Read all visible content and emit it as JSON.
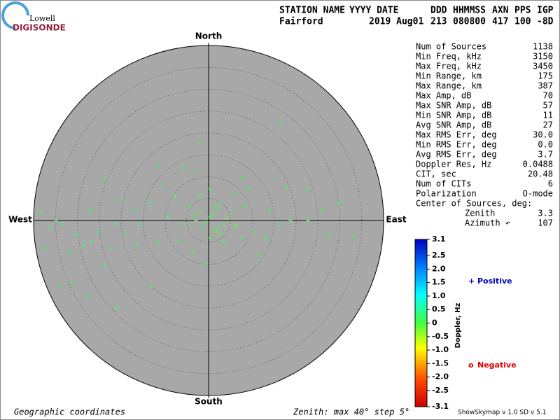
{
  "header": {
    "logo_small": "Lowell",
    "logo_big": "DIGISONDE",
    "columns": [
      "STATION NAME",
      "YYYY DATE",
      "DDD",
      "HHMMSS",
      "AXN",
      "PPS",
      "IGP"
    ],
    "values": [
      "Fairford",
      "2019 Aug01",
      "213",
      "080800",
      "417",
      "100",
      "-8D"
    ]
  },
  "stats": [
    {
      "label": "Num of Sources",
      "value": "1138"
    },
    {
      "label": "Min Freq, kHz",
      "value": "3150"
    },
    {
      "label": "Max Freq, kHz",
      "value": "3450"
    },
    {
      "label": "Min Range, km",
      "value": "175"
    },
    {
      "label": "Max Range, km",
      "value": "387"
    },
    {
      "label": "Max Amp, dB",
      "value": "70"
    },
    {
      "label": "Max SNR Amp, dB",
      "value": "57"
    },
    {
      "label": "Min SNR Amp, dB",
      "value": "11"
    },
    {
      "label": "Avg SNR Amp, dB",
      "value": "27"
    },
    {
      "label": "Max RMS Err, deg",
      "value": "30.0"
    },
    {
      "label": "Min RMS Err, deg",
      "value": "0.0"
    },
    {
      "label": "Avg RMS Err, deg",
      "value": "3.7"
    },
    {
      "label": "Doppler Res, Hz",
      "value": "0.0488"
    },
    {
      "label": "CIT, sec",
      "value": "20.48"
    },
    {
      "label": "Num of CITs",
      "value": "6"
    },
    {
      "label": "Polarization",
      "value": "O-mode"
    }
  ],
  "center": {
    "title": "Center of Sources, deg:",
    "rows": [
      {
        "label": "Zenith",
        "value": "3.3"
      },
      {
        "label": "Azimuth ↶",
        "value": "107"
      }
    ]
  },
  "chart_data": {
    "type": "polar-scatter",
    "directions": {
      "north": "North",
      "south": "South",
      "west": "West",
      "east": "East"
    },
    "footer_left": "Geographic coordinates",
    "footer_mid": "Zenith: max 40°  step 5°",
    "footer_right": "ShowSkymap v 1.0  SD v 5.1",
    "rlim": [
      0,
      40
    ],
    "rings": [
      5,
      10,
      15,
      20,
      25,
      30,
      35,
      40
    ],
    "x": [
      16.6,
      -2.2,
      -11.5,
      -5.8,
      -24,
      7.7,
      17.9,
      22.7,
      -38.4,
      -36.5,
      -37.6,
      -34.1,
      -31,
      -27.7,
      -21,
      -13.3,
      -23.7,
      -31.7,
      33.1,
      29.9,
      22.7,
      11.5,
      -0.8,
      -26.9,
      -18.9,
      -15.7,
      -9.3,
      -6.1,
      -2.9,
      0.3,
      1.9,
      3.5,
      1.1,
      -1.3,
      2.7,
      5.1,
      8.3,
      9.9,
      13.9,
      16.3,
      18.7,
      -4.5,
      -7.7,
      -13.3,
      -17.3,
      -21.3,
      -25.3,
      -28.5,
      -30.1,
      -33.3,
      -22.1,
      -16.5,
      -11.7,
      -6.9,
      -3.7,
      3.5,
      7.5,
      13.1,
      5.9,
      0.3,
      -2.1,
      -10.9,
      -19.7,
      -26.9,
      -34.9,
      25.9,
      27.5,
      9.1,
      -2.9,
      1.9,
      0.9,
      2.2,
      -0.5,
      4.1,
      1.5,
      -1.9,
      3.0,
      0.2,
      -3.4,
      6.2
    ],
    "y": [
      22.4,
      17.6,
      12.5,
      11.8,
      9.3,
      9.8,
      7.5,
      7.2,
      1.9,
      -1.6,
      -6.4,
      -14.9,
      -14.4,
      -17.6,
      -20,
      -15.2,
      -10.4,
      -7.2,
      -3.7,
      4,
      0,
      -8,
      -9.9,
      -4.8,
      -3.2,
      -0.8,
      0.8,
      -0.8,
      0,
      0.8,
      2.4,
      -0.8,
      -2.4,
      -1.6,
      4,
      1.6,
      3.2,
      -2.4,
      2.4,
      -0.8,
      0,
      3.2,
      5.6,
      4,
      2.4,
      -0.8,
      -2.4,
      -5.6,
      -3.2,
      -0.8,
      -6.4,
      -5.6,
      -4.8,
      -4.8,
      -7.2,
      -4.8,
      -4,
      -4,
      6.4,
      7.2,
      5.6,
      8,
      4.8,
      2.4,
      0,
      2.4,
      -3.2,
      7.2,
      11.2,
      -2.4,
      1.2,
      -1.5,
      -0.3,
      0.5,
      3.1,
      1.9,
      -3.3,
      -4.0,
      1.1,
      -1.2
    ],
    "doppler": [
      0.2,
      0.1,
      0.2,
      0.3,
      0.2,
      0.1,
      0.2,
      0.3,
      0.2,
      0.3,
      0.2,
      0.1,
      0.2,
      0.2,
      0.1,
      0.0,
      0.2,
      0.3,
      0.2,
      0.1,
      0.2,
      0.1,
      0.0,
      0.3,
      0.2,
      0.2,
      0.3,
      0.2,
      0.1,
      0.0,
      0.2,
      0.1,
      0.0,
      0.2,
      0.3,
      0.2,
      0.1,
      0.0,
      0.2,
      0.3,
      0.2,
      0.1,
      0.2,
      0.3,
      0.2,
      0.2,
      0.1,
      0.3,
      0.2,
      0.2,
      0.1,
      0.3,
      0.2,
      0.1,
      0.0,
      0.1,
      0.2,
      0.2,
      0.1,
      0.2,
      0.3,
      0.2,
      0.2,
      0.1,
      0.3,
      0.2,
      0.1,
      0.2,
      0.3,
      -0.1,
      0.0,
      -0.1,
      0.0,
      -0.2,
      0.0,
      -0.1,
      0.1,
      0.0,
      0.1,
      -0.1
    ],
    "colorbar": {
      "label": "Doppler, Hz",
      "lim": [
        -3.1,
        3.1
      ],
      "ticks": [
        3.1,
        2.5,
        {
          "value": 2,
          "label": "2.0"
        },
        1.5,
        {
          "value": 1,
          "label": "1.0"
        },
        0.5,
        0,
        -0.5,
        {
          "value": -1,
          "label": "-1.0"
        },
        -1.5,
        {
          "value": -2,
          "label": "-2.0"
        },
        -2.5,
        -3.1
      ]
    },
    "legend": [
      {
        "name": "Positive",
        "symbol": "+",
        "color": "#0000c0"
      },
      {
        "name": "Negative",
        "symbol": "o",
        "color": "#e00000"
      }
    ]
  }
}
